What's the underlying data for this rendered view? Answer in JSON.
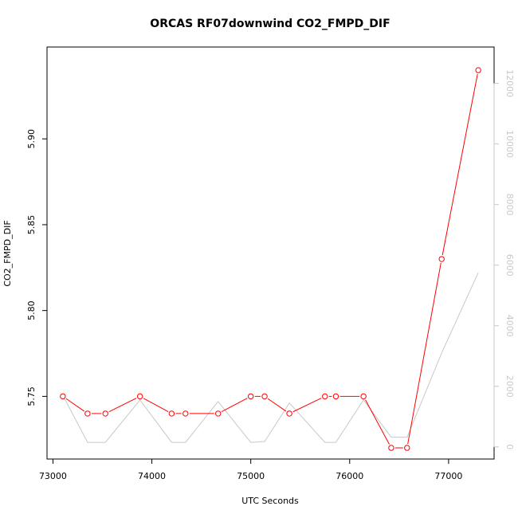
{
  "chart_data": {
    "type": "line",
    "title": "ORCAS RF07downwind CO2_FMPD_DIF",
    "xlabel": "UTC Seconds",
    "ylabel": "CO2_FMPD_DIF",
    "xlim": [
      72940,
      77460
    ],
    "ylim": [
      5.7135,
      5.9535
    ],
    "y2lim": [
      -400,
      13200
    ],
    "x_ticks": [
      73000,
      74000,
      75000,
      76000,
      77000
    ],
    "y_ticks": [
      5.75,
      5.8,
      5.85,
      5.9
    ],
    "y_tick_labels": [
      "5.75",
      "5.80",
      "5.85",
      "5.90"
    ],
    "y2_ticks": [
      0,
      2000,
      4000,
      6000,
      8000,
      10000,
      12000
    ],
    "grid": false,
    "series": [
      {
        "axis": "left",
        "color": "#ff0000",
        "marker": "open-circle",
        "x": [
          73100,
          73350,
          73530,
          73880,
          74200,
          74340,
          74670,
          75000,
          75140,
          75390,
          75750,
          75860,
          76140,
          76420,
          76580,
          76930,
          77300
        ],
        "y": [
          5.75,
          5.74,
          5.74,
          5.75,
          5.74,
          5.74,
          5.74,
          5.75,
          5.75,
          5.74,
          5.75,
          5.75,
          5.75,
          5.72,
          5.72,
          5.83,
          5.94
        ]
      },
      {
        "axis": "right",
        "color": "#c8c8c8",
        "marker": "none",
        "x": [
          73100,
          73350,
          73530,
          73880,
          74200,
          74340,
          74670,
          75000,
          75140,
          75390,
          75750,
          75860,
          76140,
          76420,
          76580,
          76930,
          77300
        ],
        "y": [
          1700,
          150,
          150,
          1550,
          150,
          150,
          1500,
          150,
          180,
          1450,
          150,
          150,
          1550,
          320,
          320,
          3100,
          5750
        ]
      }
    ]
  }
}
